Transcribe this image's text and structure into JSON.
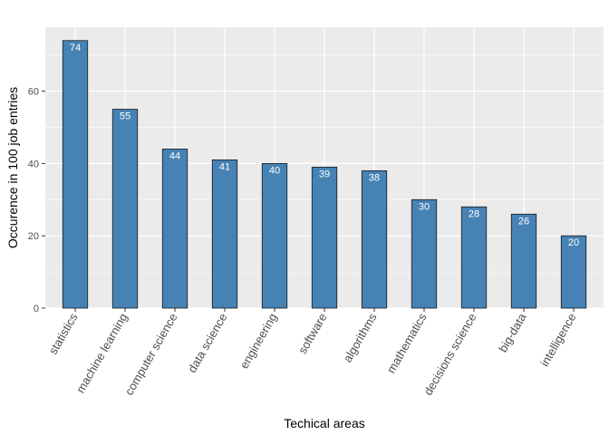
{
  "chart_data": {
    "type": "bar",
    "categories": [
      "statistics",
      "machine learning",
      "computer science",
      "data science",
      "engineering",
      "software",
      "algorithms",
      "mathematics",
      "decisions science",
      "big-data",
      "intelligence"
    ],
    "values": [
      74,
      55,
      44,
      41,
      40,
      39,
      38,
      30,
      28,
      26,
      20
    ],
    "data_labels": [
      "74",
      "55",
      "44",
      "41",
      "40",
      "39",
      "38",
      "30",
      "28",
      "26",
      "20"
    ],
    "xlabel": "Techical areas",
    "ylabel": "Occurence in 100 job entries",
    "ylim": [
      0,
      77.7
    ],
    "yticks": [
      0,
      20,
      40,
      60
    ],
    "grid": true,
    "colors": {
      "panel": "#ebebeb",
      "grid_major": "#ffffff",
      "bar_fill": "#4682b4",
      "bar_stroke": "#1a1a1a",
      "bar_label": "#ffffff"
    }
  }
}
